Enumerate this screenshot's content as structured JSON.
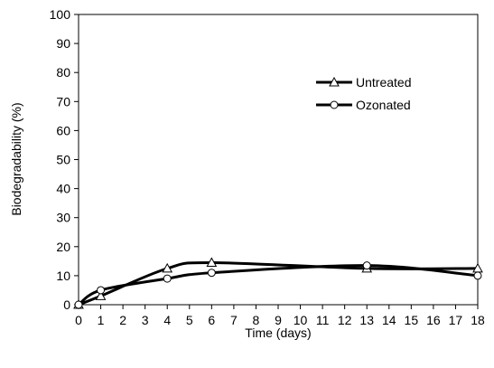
{
  "chart_data": {
    "type": "line",
    "title": "",
    "xlabel": "Time (days)",
    "ylabel": "Biodegradability (%)",
    "xlim": [
      0,
      18
    ],
    "ylim": [
      0,
      100
    ],
    "x_ticks": [
      "0",
      "1",
      "2",
      "3",
      "4",
      "5",
      "6",
      "7",
      "8",
      "9",
      "10",
      "11",
      "12",
      "13",
      "14",
      "15",
      "16",
      "17",
      "18"
    ],
    "y_ticks": [
      "0",
      "10",
      "20",
      "30",
      "40",
      "50",
      "60",
      "70",
      "80",
      "90",
      "100"
    ],
    "grid": false,
    "legend_position": "upper-right",
    "series": [
      {
        "name": "Untreated",
        "marker": "triangle",
        "color": "#000000",
        "x": [
          0,
          1,
          4,
          6,
          13,
          18
        ],
        "y": [
          0,
          3,
          12.5,
          14.5,
          12.5,
          12.5
        ]
      },
      {
        "name": "Ozonated",
        "marker": "circle",
        "color": "#000000",
        "x": [
          0,
          1,
          4,
          6,
          13,
          18
        ],
        "y": [
          0,
          5,
          9,
          11,
          13.5,
          10
        ]
      }
    ]
  }
}
